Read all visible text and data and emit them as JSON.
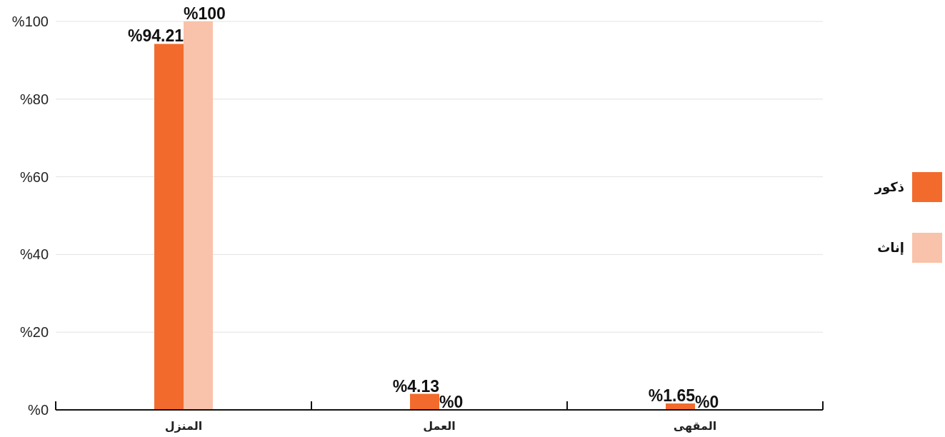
{
  "chart_data": {
    "type": "bar",
    "categories": [
      "المنزل",
      "العمل",
      "المقهى"
    ],
    "series": [
      {
        "name": "ذكور",
        "color": "#f26b2d",
        "values": [
          94.21,
          4.13,
          1.65
        ],
        "value_labels": [
          "%94.21",
          "%4.13",
          "%1.65"
        ]
      },
      {
        "name": "إناث",
        "color": "#f9c2aa",
        "values": [
          100,
          0,
          0
        ],
        "value_labels": [
          "%100",
          "%0",
          "%0"
        ]
      }
    ],
    "ylim": [
      0,
      100
    ],
    "yticks": [
      {
        "value": 0,
        "label": "%0"
      },
      {
        "value": 20,
        "label": "%20"
      },
      {
        "value": 40,
        "label": "%40"
      },
      {
        "value": 60,
        "label": "%60"
      },
      {
        "value": 80,
        "label": "%80"
      },
      {
        "value": 100,
        "label": "%100"
      }
    ],
    "grid": "y",
    "legend": "right"
  }
}
